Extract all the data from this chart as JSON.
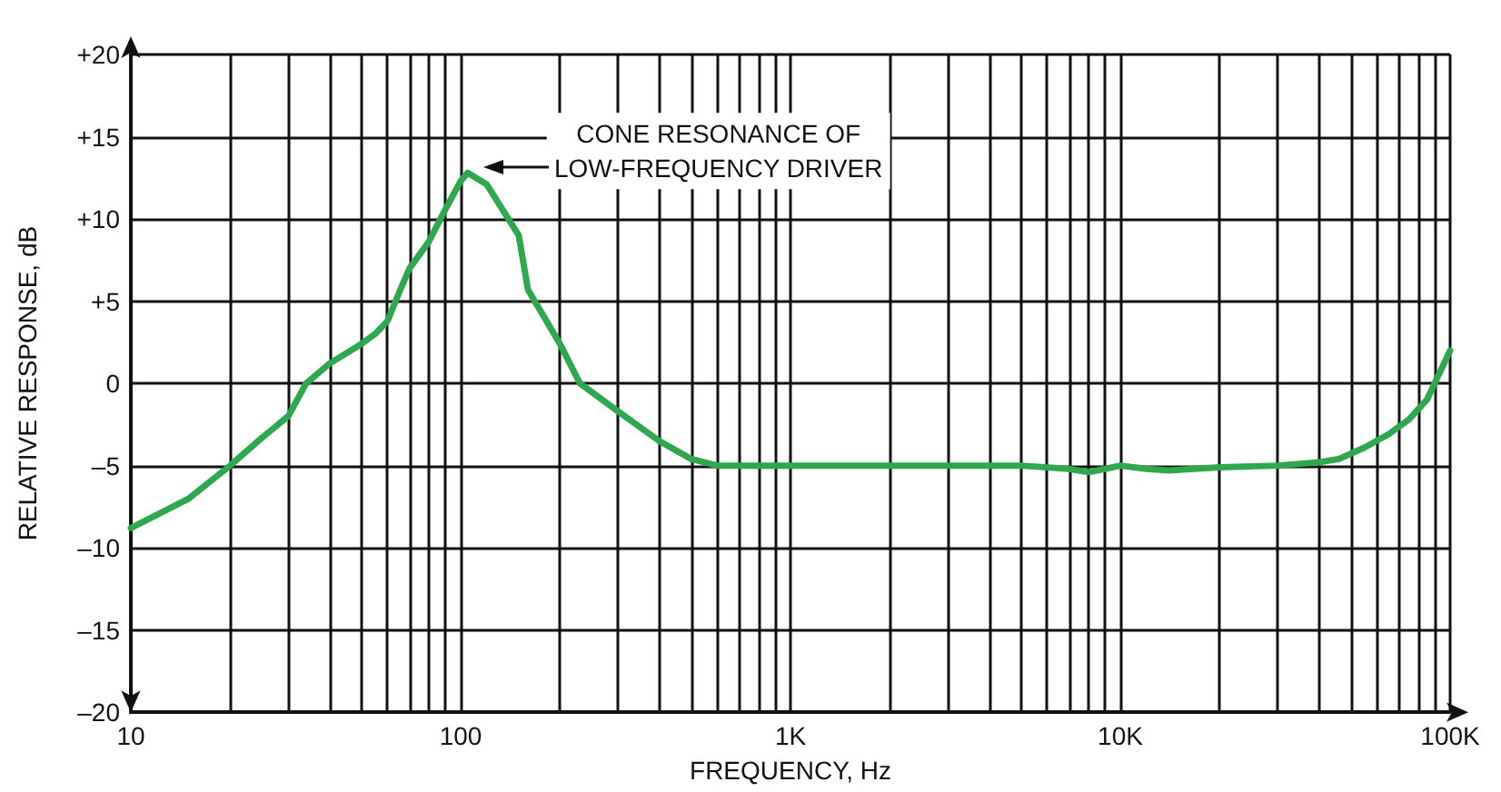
{
  "chart_data": {
    "type": "line",
    "xlabel": "FREQUENCY, Hz",
    "ylabel": "RELATIVE RESPONSE, dB",
    "log": "x",
    "grid": true,
    "marker": "none",
    "line_style": "solid",
    "xlim": [
      10,
      100000
    ],
    "ylim": [
      -20,
      20
    ],
    "xticks": [
      10,
      {
        "value": 20,
        "label": null
      },
      {
        "value": 30,
        "label": null
      },
      {
        "value": 40,
        "label": null
      },
      {
        "value": 50,
        "label": null
      },
      {
        "value": 60,
        "label": null
      },
      {
        "value": 70,
        "label": null
      },
      {
        "value": 80,
        "label": null
      },
      {
        "value": 90,
        "label": null
      },
      100,
      {
        "value": 200,
        "label": null
      },
      {
        "value": 300,
        "label": null
      },
      {
        "value": 400,
        "label": null
      },
      {
        "value": 500,
        "label": null
      },
      {
        "value": 600,
        "label": null
      },
      {
        "value": 700,
        "label": null
      },
      {
        "value": 800,
        "label": null
      },
      {
        "value": 900,
        "label": null
      },
      {
        "value": 1000,
        "label": "1K"
      },
      {
        "value": 2000,
        "label": null
      },
      {
        "value": 3000,
        "label": null
      },
      {
        "value": 4000,
        "label": null
      },
      {
        "value": 5000,
        "label": null
      },
      {
        "value": 6000,
        "label": null
      },
      {
        "value": 7000,
        "label": null
      },
      {
        "value": 8000,
        "label": null
      },
      {
        "value": 9000,
        "label": null
      },
      {
        "value": 10000,
        "label": "10K"
      },
      {
        "value": 20000,
        "label": null
      },
      {
        "value": 30000,
        "label": null
      },
      {
        "value": 40000,
        "label": null
      },
      {
        "value": 50000,
        "label": null
      },
      {
        "value": 60000,
        "label": null
      },
      {
        "value": 70000,
        "label": null
      },
      {
        "value": 80000,
        "label": null
      },
      {
        "value": 90000,
        "label": null
      },
      {
        "value": 100000,
        "label": "100K"
      }
    ],
    "yticks": [
      {
        "value": -20,
        "label": "–20"
      },
      {
        "value": -15,
        "label": "–15"
      },
      {
        "value": -10,
        "label": "–10"
      },
      {
        "value": -5,
        "label": "–5"
      },
      0,
      {
        "value": 5,
        "label": "+5"
      },
      {
        "value": 10,
        "label": "+10"
      },
      {
        "value": 15,
        "label": "+15"
      },
      {
        "value": 20,
        "label": "+20"
      }
    ],
    "annotations": [
      "CONE RESONANCE OF\nLOW-FREQUENCY DRIVER"
    ],
    "series": [
      {
        "color": "#2ea84f",
        "x": [
          10,
          15,
          20,
          25,
          30,
          34,
          40,
          50,
          55,
          60,
          65,
          70,
          80,
          90,
          100,
          105,
          120,
          150,
          160,
          200,
          230,
          300,
          400,
          500,
          600,
          800,
          1000,
          2000,
          5000,
          7000,
          8000,
          9000,
          10000,
          12000,
          14000,
          20000,
          30000,
          40000,
          46000,
          55000,
          65000,
          75000,
          85000,
          100000
        ],
        "values": [
          -8.8,
          -7,
          -5,
          -3.3,
          -2,
          0,
          1.2,
          2.4,
          3,
          3.8,
          5.5,
          7,
          8.6,
          10.6,
          12.3,
          12.8,
          12.1,
          9,
          5.7,
          2.4,
          0,
          -1.7,
          -3.5,
          -4.6,
          -5,
          -5,
          -5,
          -5,
          -5,
          -5.2,
          -5.4,
          -5.2,
          -5,
          -5.2,
          -5.3,
          -5.1,
          -5,
          -4.8,
          -4.6,
          -3.9,
          -3.1,
          -2.2,
          -1,
          2
        ]
      }
    ]
  }
}
